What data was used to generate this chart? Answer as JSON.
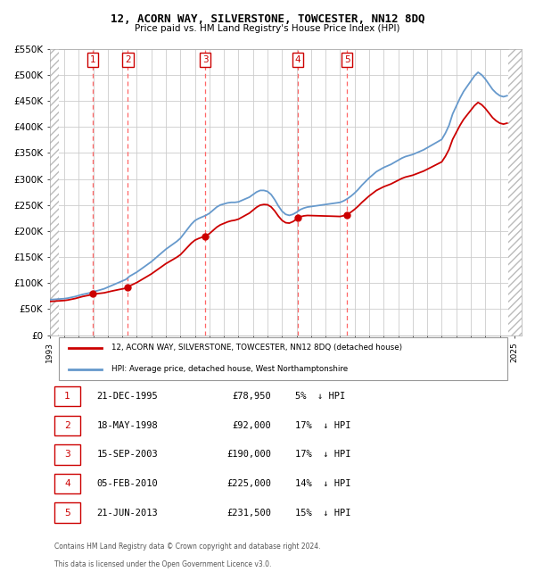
{
  "title1": "12, ACORN WAY, SILVERSTONE, TOWCESTER, NN12 8DQ",
  "title2": "Price paid vs. HM Land Registry's House Price Index (HPI)",
  "legend_line1": "12, ACORN WAY, SILVERSTONE, TOWCESTER, NN12 8DQ (detached house)",
  "legend_line2": "HPI: Average price, detached house, West Northamptonshire",
  "footer1": "Contains HM Land Registry data © Crown copyright and database right 2024.",
  "footer2": "This data is licensed under the Open Government Licence v3.0.",
  "ylim": [
    0,
    550000
  ],
  "yticks": [
    0,
    50000,
    100000,
    150000,
    200000,
    250000,
    300000,
    350000,
    400000,
    450000,
    500000,
    550000
  ],
  "ytick_labels": [
    "£0",
    "£50K",
    "£100K",
    "£150K",
    "£200K",
    "£250K",
    "£300K",
    "£350K",
    "£400K",
    "£450K",
    "£500K",
    "£550K"
  ],
  "xlim_start": 1993.0,
  "xlim_end": 2025.5,
  "sales": [
    {
      "num": 1,
      "date": "21-DEC-1995",
      "x": 1995.97,
      "price": 78950,
      "pct": "5%",
      "dir": "↓"
    },
    {
      "num": 2,
      "date": "18-MAY-1998",
      "x": 1998.38,
      "price": 92000,
      "pct": "17%",
      "dir": "↓"
    },
    {
      "num": 3,
      "date": "15-SEP-2003",
      "x": 2003.71,
      "price": 190000,
      "pct": "17%",
      "dir": "↓"
    },
    {
      "num": 4,
      "date": "05-FEB-2010",
      "x": 2010.09,
      "price": 225000,
      "pct": "14%",
      "dir": "↓"
    },
    {
      "num": 5,
      "date": "21-JUN-2013",
      "x": 2013.47,
      "price": 231500,
      "pct": "15%",
      "dir": "↓"
    }
  ],
  "property_color": "#cc0000",
  "hpi_color": "#6699cc",
  "marker_box_color": "#cc0000",
  "vline_color": "#ff6666",
  "grid_color": "#cccccc",
  "background_color": "#ffffff",
  "hpi_data_x": [
    1993.0,
    1993.25,
    1993.5,
    1993.75,
    1994.0,
    1994.25,
    1994.5,
    1994.75,
    1995.0,
    1995.25,
    1995.5,
    1995.75,
    1996.0,
    1996.25,
    1996.5,
    1996.75,
    1997.0,
    1997.25,
    1997.5,
    1997.75,
    1998.0,
    1998.25,
    1998.5,
    1998.75,
    1999.0,
    1999.25,
    1999.5,
    1999.75,
    2000.0,
    2000.25,
    2000.5,
    2000.75,
    2001.0,
    2001.25,
    2001.5,
    2001.75,
    2002.0,
    2002.25,
    2002.5,
    2002.75,
    2003.0,
    2003.25,
    2003.5,
    2003.75,
    2004.0,
    2004.25,
    2004.5,
    2004.75,
    2005.0,
    2005.25,
    2005.5,
    2005.75,
    2006.0,
    2006.25,
    2006.5,
    2006.75,
    2007.0,
    2007.25,
    2007.5,
    2007.75,
    2008.0,
    2008.25,
    2008.5,
    2008.75,
    2009.0,
    2009.25,
    2009.5,
    2009.75,
    2010.0,
    2010.25,
    2010.5,
    2010.75,
    2011.0,
    2011.25,
    2011.5,
    2011.75,
    2012.0,
    2012.25,
    2012.5,
    2012.75,
    2013.0,
    2013.25,
    2013.5,
    2013.75,
    2014.0,
    2014.25,
    2014.5,
    2014.75,
    2015.0,
    2015.25,
    2015.5,
    2015.75,
    2016.0,
    2016.25,
    2016.5,
    2016.75,
    2017.0,
    2017.25,
    2017.5,
    2017.75,
    2018.0,
    2018.25,
    2018.5,
    2018.75,
    2019.0,
    2019.25,
    2019.5,
    2019.75,
    2020.0,
    2020.25,
    2020.5,
    2020.75,
    2021.0,
    2021.25,
    2021.5,
    2021.75,
    2022.0,
    2022.25,
    2022.5,
    2022.75,
    2023.0,
    2023.25,
    2023.5,
    2023.75,
    2024.0,
    2024.25,
    2024.5
  ],
  "hpi_data_y": [
    68000,
    68500,
    69000,
    69500,
    70000,
    71000,
    72500,
    74000,
    76000,
    78000,
    79500,
    81000,
    83500,
    85000,
    87000,
    89000,
    92000,
    95000,
    98000,
    101000,
    104000,
    107000,
    113000,
    117000,
    121000,
    126000,
    131000,
    136000,
    141000,
    147000,
    153000,
    159000,
    165000,
    170000,
    175000,
    180000,
    186000,
    195000,
    204000,
    213000,
    220000,
    224000,
    227000,
    230000,
    234000,
    240000,
    246000,
    250000,
    252000,
    254000,
    255000,
    255000,
    256000,
    259000,
    262000,
    265000,
    270000,
    275000,
    278000,
    278000,
    276000,
    270000,
    260000,
    248000,
    238000,
    232000,
    230000,
    232000,
    236000,
    241000,
    244000,
    246000,
    247000,
    248000,
    249000,
    250000,
    251000,
    252000,
    253000,
    254000,
    255000,
    258000,
    262000,
    267000,
    273000,
    280000,
    288000,
    295000,
    302000,
    308000,
    314000,
    318000,
    322000,
    325000,
    328000,
    332000,
    336000,
    340000,
    343000,
    345000,
    347000,
    350000,
    353000,
    356000,
    360000,
    364000,
    368000,
    372000,
    376000,
    388000,
    403000,
    425000,
    440000,
    455000,
    468000,
    478000,
    488000,
    498000,
    505000,
    500000,
    492000,
    482000,
    472000,
    465000,
    460000,
    458000,
    460000
  ]
}
